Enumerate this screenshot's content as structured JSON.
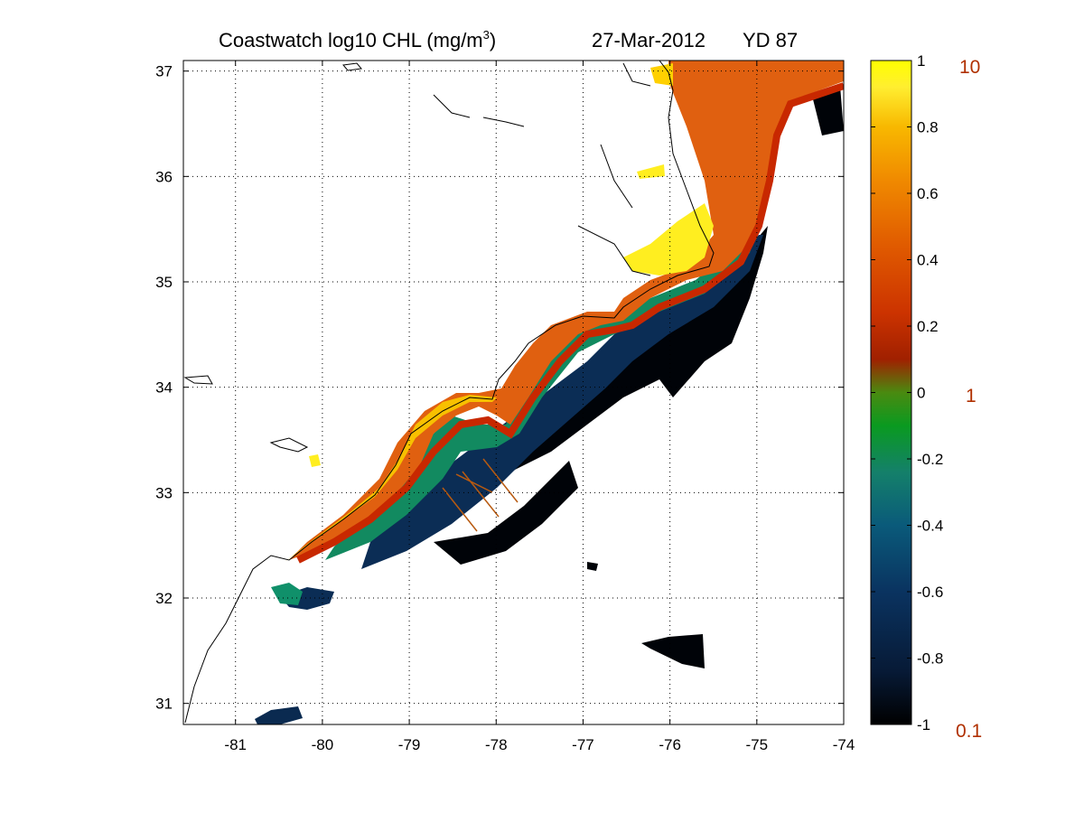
{
  "title": {
    "left": "Coastwatch  log10  CHL (mg/m",
    "superscript": "3",
    "close": ")",
    "date": "27-Mar-2012",
    "yearday": "YD 87"
  },
  "axes": {
    "x_ticks": [
      "-81",
      "-80",
      "-79",
      "-78",
      "-77",
      "-76",
      "-75",
      "-74"
    ],
    "x_values": [
      -81,
      -80,
      -79,
      -78,
      -77,
      -76,
      -75,
      -74
    ],
    "y_ticks": [
      "37",
      "36",
      "35",
      "34",
      "33",
      "32",
      "31"
    ],
    "y_values": [
      37,
      36,
      35,
      34,
      33,
      32,
      31
    ],
    "lon_range": [
      -81.6,
      -74
    ],
    "lat_range": [
      30.8,
      37.1
    ],
    "grid": "dotted"
  },
  "colorbar": {
    "ticks": [
      "1",
      "0.8",
      "0.6",
      "0.4",
      "0.2",
      "0",
      "-0.2",
      "-0.4",
      "-0.6",
      "-0.8",
      "-1"
    ],
    "tick_values": [
      1,
      0.8,
      0.6,
      0.4,
      0.2,
      0,
      -0.2,
      -0.4,
      -0.6,
      -0.8,
      -1
    ],
    "range": [
      -1,
      1
    ],
    "colormap": [
      "#000000",
      "#071a36",
      "#0a3360",
      "#0a5a7a",
      "#14806a",
      "#0a9a20",
      "#4a8a10",
      "#a02000",
      "#cc3300",
      "#e05a00",
      "#f08a00",
      "#f8b800",
      "#ffee30",
      "#ffff00"
    ],
    "ref_labels": [
      "10",
      "1",
      "0.1"
    ],
    "ref_color": "#b03000"
  },
  "colors": {
    "coastline": "#000000",
    "transect": "#b85a10"
  }
}
